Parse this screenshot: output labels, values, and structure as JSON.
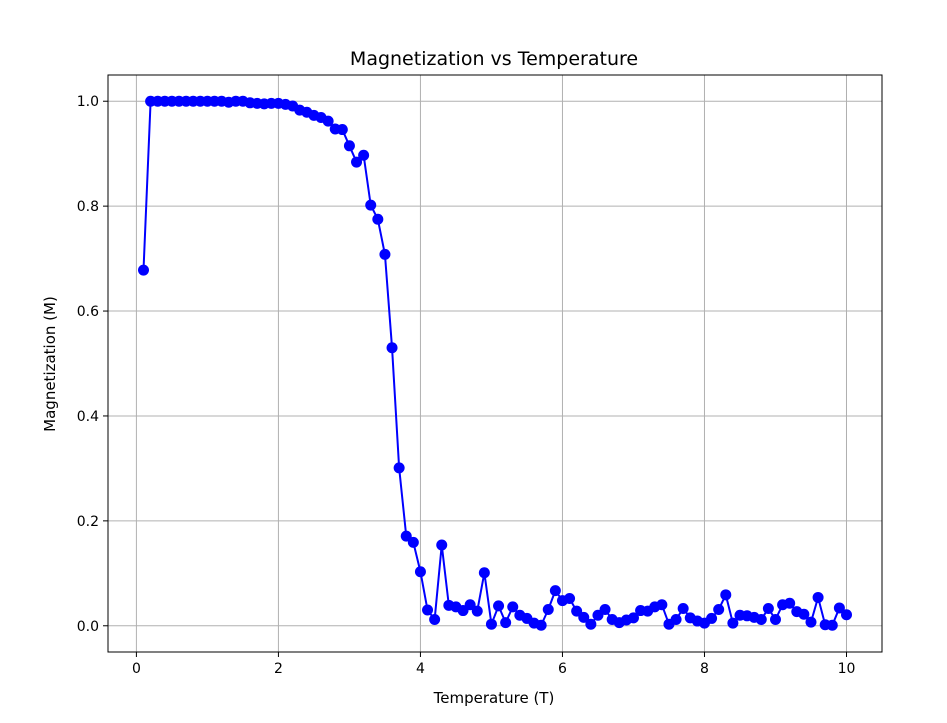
{
  "chart_data": {
    "type": "line",
    "title": "Magnetization vs Temperature",
    "xlabel": "Temperature (T)",
    "ylabel": "Magnetization (M)",
    "xlim": [
      -0.4,
      10.5
    ],
    "ylim": [
      -0.05,
      1.05
    ],
    "x_ticks": [
      "0",
      "2",
      "4",
      "6",
      "8",
      "10"
    ],
    "y_ticks": [
      "0.0",
      "0.2",
      "0.4",
      "0.6",
      "0.8",
      "1.0"
    ],
    "grid": true,
    "series_color": "#0000ff",
    "marker": "circle",
    "x": [
      0.1,
      0.2,
      0.3,
      0.4,
      0.5,
      0.6,
      0.7,
      0.8,
      0.9,
      1.0,
      1.1,
      1.2,
      1.3,
      1.4,
      1.5,
      1.6,
      1.7,
      1.8,
      1.9,
      2.0,
      2.1,
      2.2,
      2.3,
      2.4,
      2.5,
      2.6,
      2.7,
      2.8,
      2.9,
      3.0,
      3.1,
      3.2,
      3.3,
      3.4,
      3.5,
      3.6,
      3.7,
      3.8,
      3.9,
      4.0,
      4.1,
      4.2,
      4.3,
      4.4,
      4.5,
      4.6,
      4.7,
      4.8,
      4.9,
      5.0,
      5.1,
      5.2,
      5.3,
      5.4,
      5.5,
      5.6,
      5.7,
      5.8,
      5.9,
      6.0,
      6.1,
      6.2,
      6.3,
      6.4,
      6.5,
      6.6,
      6.7,
      6.8,
      6.9,
      7.0,
      7.1,
      7.2,
      7.3,
      7.4,
      7.5,
      7.6,
      7.7,
      7.8,
      7.9,
      8.0,
      8.1,
      8.2,
      8.3,
      8.4,
      8.5,
      8.6,
      8.7,
      8.8,
      8.9,
      9.0,
      9.1,
      9.2,
      9.3,
      9.4,
      9.5,
      9.6,
      9.7,
      9.8,
      9.9,
      10.0
    ],
    "y": [
      0.678,
      1.0,
      1.0,
      1.0,
      1.0,
      1.0,
      1.0,
      1.0,
      1.0,
      1.0,
      1.0,
      1.0,
      0.998,
      1.0,
      1.0,
      0.997,
      0.996,
      0.995,
      0.996,
      0.996,
      0.994,
      0.991,
      0.983,
      0.979,
      0.973,
      0.969,
      0.962,
      0.947,
      0.946,
      0.915,
      0.884,
      0.897,
      0.802,
      0.775,
      0.708,
      0.53,
      0.301,
      0.171,
      0.159,
      0.103,
      0.03,
      0.012,
      0.154,
      0.039,
      0.036,
      0.029,
      0.04,
      0.028,
      0.101,
      0.003,
      0.038,
      0.006,
      0.036,
      0.02,
      0.014,
      0.005,
      0.001,
      0.031,
      0.067,
      0.048,
      0.052,
      0.028,
      0.016,
      0.003,
      0.02,
      0.031,
      0.012,
      0.006,
      0.011,
      0.015,
      0.029,
      0.028,
      0.036,
      0.04,
      0.003,
      0.012,
      0.033,
      0.015,
      0.009,
      0.005,
      0.014,
      0.031,
      0.059,
      0.005,
      0.02,
      0.019,
      0.016,
      0.012,
      0.033,
      0.012,
      0.04,
      0.043,
      0.027,
      0.022,
      0.007,
      0.054,
      0.002,
      0.001,
      0.034,
      0.021
    ]
  }
}
